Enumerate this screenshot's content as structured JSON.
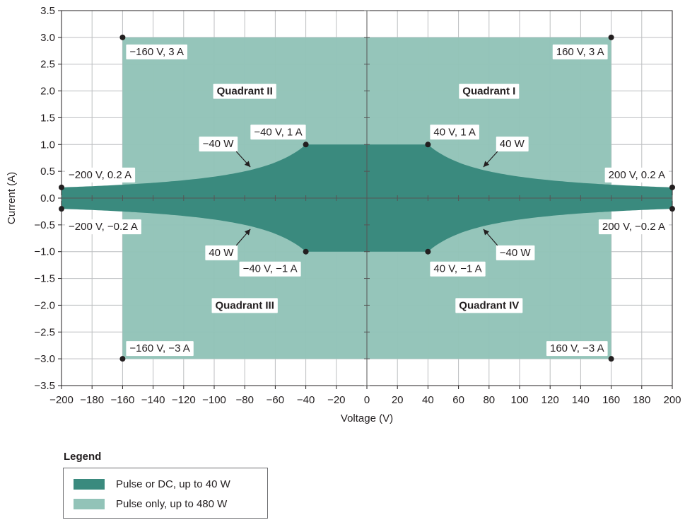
{
  "chart_data": {
    "type": "area",
    "xlabel": "Voltage (V)",
    "ylabel": "Current (A)",
    "xlim": [
      -200,
      200
    ],
    "ylim": [
      -3.5,
      3.5
    ],
    "x_ticks": [
      -200,
      -180,
      -160,
      -140,
      -120,
      -100,
      -80,
      -60,
      -40,
      -20,
      0,
      20,
      40,
      60,
      80,
      100,
      120,
      140,
      160,
      180,
      200
    ],
    "x_tick_labels": [
      "−200",
      "−180",
      "−160",
      "−140",
      "−120",
      "−100",
      "−80",
      "−60",
      "−40",
      "−20",
      "0",
      "20",
      "40",
      "60",
      "80",
      "100",
      "120",
      "140",
      "160",
      "180",
      "200"
    ],
    "y_ticks": [
      3.5,
      3.0,
      2.5,
      2.0,
      1.5,
      1.0,
      0.5,
      0.0,
      -0.5,
      -1.0,
      -1.5,
      -2.0,
      -2.5,
      -3.0,
      -3.5
    ],
    "y_tick_labels": [
      "3.5",
      "3.0",
      "2.5",
      "2.0",
      "1.5",
      "1.0",
      "0.5",
      "0.0",
      "−0.5",
      "−1.0",
      "−1.5",
      "−2.0",
      "−2.5",
      "−3.0",
      "−3.5"
    ],
    "grid": true,
    "colors": {
      "dc": "#3a8a7e",
      "pulse": "#92c3b8",
      "grid": "#bcbec0",
      "axis": "#231f20"
    },
    "series": [
      {
        "name": "Pulse only, up to 480 W",
        "color": "#92c3b8",
        "region": "rectangle",
        "voltage_range": [
          -160,
          160
        ],
        "current_range": [
          -3,
          3
        ]
      },
      {
        "name": "Pulse or DC, up to 40 W",
        "color": "#3a8a7e",
        "region": "constant power 40 W, |I| ≤ 1 A, |V| ≤ 200 V",
        "power_w": 40,
        "current_limit_a": 1,
        "voltage_limit_v": 200
      }
    ],
    "points": [
      {
        "v": -160,
        "i": 3,
        "label": "−160 V, 3 A",
        "anchor": "right"
      },
      {
        "v": 160,
        "i": 3,
        "label": "160 V, 3 A",
        "anchor": "left"
      },
      {
        "v": -40,
        "i": 1,
        "label": "−40 V, 1 A",
        "anchor": "up-left"
      },
      {
        "v": 40,
        "i": 1,
        "label": "40 V, 1 A",
        "anchor": "up-right"
      },
      {
        "v": -200,
        "i": 0.2,
        "label": "−200 V, 0.2 A",
        "anchor": "right"
      },
      {
        "v": 200,
        "i": 0.2,
        "label": "200 V, 0.2 A",
        "anchor": "left"
      },
      {
        "v": -200,
        "i": -0.2,
        "label": "−200 V, −0.2 A",
        "anchor": "right-below"
      },
      {
        "v": 200,
        "i": -0.2,
        "label": "200 V, −0.2 A",
        "anchor": "left-below"
      },
      {
        "v": -40,
        "i": -1,
        "label": "−40 V, −1 A",
        "anchor": "down-left"
      },
      {
        "v": 40,
        "i": -1,
        "label": "40 V, −1 A",
        "anchor": "down-right"
      },
      {
        "v": -160,
        "i": -3,
        "label": "−160 V, −3 A",
        "anchor": "right-up"
      },
      {
        "v": 160,
        "i": -3,
        "label": "160 V, −3 A",
        "anchor": "left-up"
      }
    ],
    "quadrants": [
      {
        "label": "Quadrant I",
        "v": 80,
        "i": 2
      },
      {
        "label": "Quadrant II",
        "v": -80,
        "i": 2
      },
      {
        "label": "Quadrant III",
        "v": -80,
        "i": -2
      },
      {
        "label": "Quadrant IV",
        "v": 80,
        "i": -2
      }
    ],
    "power_labels": [
      {
        "text": "40 W",
        "v": 80,
        "i": 0.5
      },
      {
        "text": "−40 W",
        "v": -80,
        "i": 0.5
      },
      {
        "text": "40 W",
        "v": -80,
        "i": -0.5
      },
      {
        "text": "−40 W",
        "v": 80,
        "i": -0.5
      }
    ]
  },
  "legend": {
    "title": "Legend",
    "items": [
      {
        "label": "Pulse or DC, up to 40 W",
        "color": "#3a8a7e"
      },
      {
        "label": "Pulse only, up to 480 W",
        "color": "#92c3b8"
      }
    ]
  }
}
